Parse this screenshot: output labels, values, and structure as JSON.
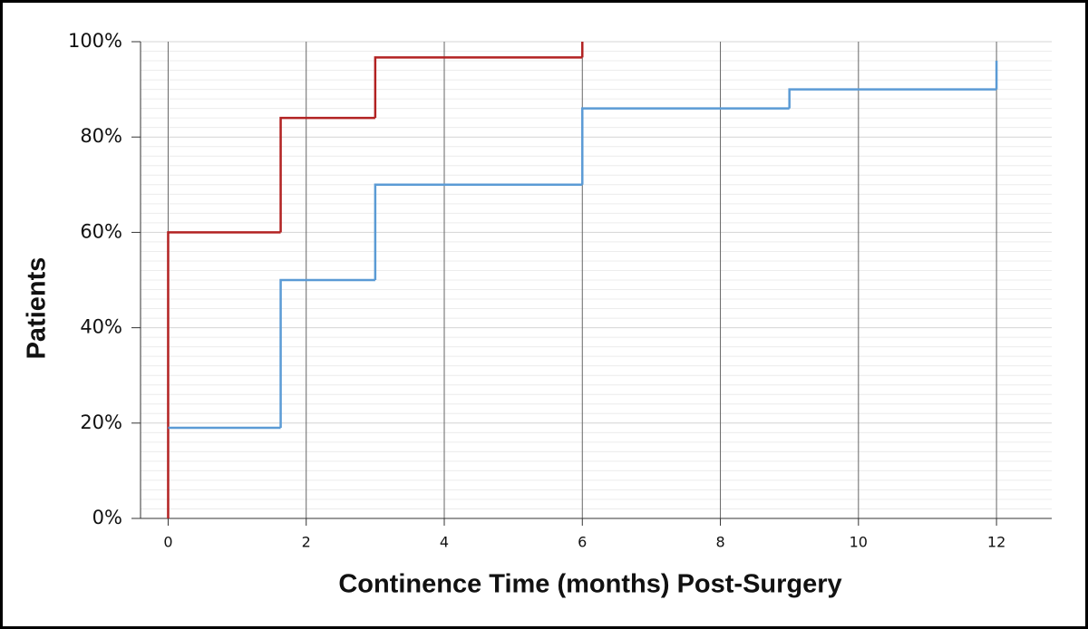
{
  "chart_data": {
    "type": "step",
    "xlabel": "Continence Time (months) Post-Surgery",
    "ylabel": "Patients",
    "xlim": [
      -0.4,
      12.8
    ],
    "xticks": [
      0,
      2,
      4,
      6,
      8,
      10,
      12
    ],
    "ylim": [
      0,
      100
    ],
    "yticks": [
      {
        "value": 0,
        "label": "0%"
      },
      {
        "value": 20,
        "label": "20%"
      },
      {
        "value": 40,
        "label": "40%"
      },
      {
        "value": 60,
        "label": "60%"
      },
      {
        "value": 80,
        "label": "80%"
      },
      {
        "value": 100,
        "label": "100%"
      }
    ],
    "grid": true,
    "minor_divisions": 10,
    "series": [
      {
        "color": "#b22222",
        "x": [
          0,
          0,
          1.63,
          3,
          6
        ],
        "values": [
          0,
          60,
          84,
          96.7,
          100
        ]
      },
      {
        "color": "#5b9bd5",
        "x": [
          0,
          1.63,
          3,
          6,
          9,
          12
        ],
        "values": [
          19,
          50,
          70,
          86,
          90,
          96
        ]
      }
    ]
  }
}
